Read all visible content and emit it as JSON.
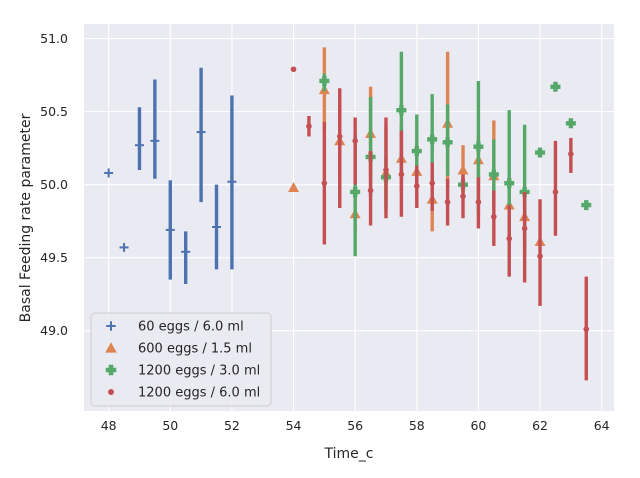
{
  "chart_data": {
    "type": "scatter",
    "xlabel": "Time_c",
    "ylabel": "Basal Feeding rate parameter",
    "xlim": [
      47.2,
      64.4
    ],
    "ylim": [
      48.45,
      51.1
    ],
    "x_ticks": [
      48,
      50,
      52,
      54,
      56,
      58,
      60,
      62,
      64
    ],
    "y_ticks": [
      49.0,
      49.5,
      50.0,
      50.5,
      51.0
    ],
    "x_tick_labels": [
      "48",
      "50",
      "52",
      "54",
      "56",
      "58",
      "60",
      "62",
      "64"
    ],
    "y_tick_labels": [
      "49.0",
      "49.5",
      "50.0",
      "50.5",
      "51.0"
    ],
    "grid": true,
    "legend_position": "lower-left",
    "series": [
      {
        "name": "60 eggs / 6.0 ml",
        "color": "#4c72b0",
        "marker": "plus",
        "points": [
          {
            "x": 48.0,
            "y": 50.08,
            "lo": null,
            "hi": null
          },
          {
            "x": 48.5,
            "y": 49.57,
            "lo": null,
            "hi": null
          },
          {
            "x": 49.0,
            "y": 50.27,
            "lo": 50.1,
            "hi": 50.53
          },
          {
            "x": 49.5,
            "y": 50.3,
            "lo": 50.04,
            "hi": 50.72
          },
          {
            "x": 50.0,
            "y": 49.69,
            "lo": 49.35,
            "hi": 50.03
          },
          {
            "x": 50.5,
            "y": 49.54,
            "lo": 49.32,
            "hi": 49.68
          },
          {
            "x": 51.0,
            "y": 50.36,
            "lo": 49.88,
            "hi": 50.8
          },
          {
            "x": 51.5,
            "y": 49.71,
            "lo": 49.42,
            "hi": 50.0
          },
          {
            "x": 52.0,
            "y": 50.02,
            "lo": 49.42,
            "hi": 50.61
          }
        ]
      },
      {
        "name": "600 eggs / 1.5 ml",
        "color": "#dd8452",
        "marker": "triangle",
        "points": [
          {
            "x": 54.0,
            "y": 49.98,
            "lo": null,
            "hi": null
          },
          {
            "x": 55.0,
            "y": 50.65,
            "lo": 50.37,
            "hi": 50.94
          },
          {
            "x": 55.5,
            "y": 50.3,
            "lo": 50.02,
            "hi": 50.55
          },
          {
            "x": 56.0,
            "y": 49.8,
            "lo": 49.67,
            "hi": 49.97
          },
          {
            "x": 56.5,
            "y": 50.35,
            "lo": 50.05,
            "hi": 50.67
          },
          {
            "x": 57.0,
            "y": 50.08,
            "lo": 49.81,
            "hi": 50.4
          },
          {
            "x": 57.5,
            "y": 50.18,
            "lo": 49.95,
            "hi": 50.42
          },
          {
            "x": 58.0,
            "y": 50.09,
            "lo": 49.9,
            "hi": 50.28
          },
          {
            "x": 58.5,
            "y": 49.9,
            "lo": 49.68,
            "hi": 50.1
          },
          {
            "x": 59.0,
            "y": 50.42,
            "lo": 49.98,
            "hi": 50.91
          },
          {
            "x": 59.5,
            "y": 50.1,
            "lo": 49.94,
            "hi": 50.27
          },
          {
            "x": 60.0,
            "y": 50.17,
            "lo": 49.99,
            "hi": 50.33
          },
          {
            "x": 60.5,
            "y": 50.06,
            "lo": 49.87,
            "hi": 50.44
          },
          {
            "x": 61.0,
            "y": 49.86,
            "lo": 49.72,
            "hi": 50.02
          },
          {
            "x": 61.5,
            "y": 49.78,
            "lo": 49.61,
            "hi": 49.96
          },
          {
            "x": 62.0,
            "y": 49.61,
            "lo": null,
            "hi": null
          }
        ]
      },
      {
        "name": "1200 eggs / 3.0 ml",
        "color": "#55a868",
        "marker": "plus-filled",
        "points": [
          {
            "x": 55.0,
            "y": 50.71,
            "lo": 50.64,
            "hi": 50.76
          },
          {
            "x": 56.0,
            "y": 49.95,
            "lo": 49.51,
            "hi": 50.35
          },
          {
            "x": 56.5,
            "y": 50.19,
            "lo": 49.92,
            "hi": 50.6
          },
          {
            "x": 57.0,
            "y": 50.05,
            "lo": 49.85,
            "hi": 50.2
          },
          {
            "x": 57.5,
            "y": 50.51,
            "lo": 50.08,
            "hi": 50.91
          },
          {
            "x": 58.0,
            "y": 50.23,
            "lo": 49.99,
            "hi": 50.48
          },
          {
            "x": 58.5,
            "y": 50.31,
            "lo": 50.0,
            "hi": 50.62
          },
          {
            "x": 59.0,
            "y": 50.29,
            "lo": 50.06,
            "hi": 50.55
          },
          {
            "x": 59.5,
            "y": 50.0,
            "lo": 49.95,
            "hi": 50.05
          },
          {
            "x": 60.0,
            "y": 50.26,
            "lo": 49.8,
            "hi": 50.71
          },
          {
            "x": 60.5,
            "y": 50.07,
            "lo": 49.84,
            "hi": 50.31
          },
          {
            "x": 61.0,
            "y": 50.01,
            "lo": 49.6,
            "hi": 50.51
          },
          {
            "x": 61.5,
            "y": 49.95,
            "lo": 49.51,
            "hi": 50.41
          },
          {
            "x": 62.0,
            "y": 50.22,
            "lo": null,
            "hi": null
          },
          {
            "x": 62.5,
            "y": 50.67,
            "lo": null,
            "hi": null
          },
          {
            "x": 63.0,
            "y": 50.42,
            "lo": null,
            "hi": null
          },
          {
            "x": 63.5,
            "y": 49.86,
            "lo": null,
            "hi": null
          }
        ]
      },
      {
        "name": "1200 eggs / 6.0 ml",
        "color": "#c44e52",
        "marker": "circle",
        "points": [
          {
            "x": 54.0,
            "y": 50.79,
            "lo": null,
            "hi": null
          },
          {
            "x": 54.5,
            "y": 50.4,
            "lo": 50.33,
            "hi": 50.47
          },
          {
            "x": 55.0,
            "y": 50.01,
            "lo": 49.59,
            "hi": 50.43
          },
          {
            "x": 55.5,
            "y": 50.33,
            "lo": 49.84,
            "hi": 50.66
          },
          {
            "x": 56.0,
            "y": 50.3,
            "lo": 50.0,
            "hi": 50.46
          },
          {
            "x": 56.5,
            "y": 49.96,
            "lo": 49.72,
            "hi": 50.23
          },
          {
            "x": 57.0,
            "y": 50.1,
            "lo": 49.77,
            "hi": 50.46
          },
          {
            "x": 57.5,
            "y": 50.07,
            "lo": 49.78,
            "hi": 50.37
          },
          {
            "x": 58.0,
            "y": 49.99,
            "lo": 49.84,
            "hi": 50.13
          },
          {
            "x": 58.5,
            "y": 50.01,
            "lo": 49.82,
            "hi": 50.15
          },
          {
            "x": 59.0,
            "y": 49.88,
            "lo": 49.72,
            "hi": 50.04
          },
          {
            "x": 59.5,
            "y": 49.92,
            "lo": 49.77,
            "hi": 50.07
          },
          {
            "x": 60.0,
            "y": 49.88,
            "lo": 49.7,
            "hi": 50.05
          },
          {
            "x": 60.5,
            "y": 49.78,
            "lo": 49.58,
            "hi": 49.96
          },
          {
            "x": 61.0,
            "y": 49.63,
            "lo": 49.37,
            "hi": 49.86
          },
          {
            "x": 61.5,
            "y": 49.7,
            "lo": 49.33,
            "hi": 49.95
          },
          {
            "x": 62.0,
            "y": 49.51,
            "lo": 49.17,
            "hi": 49.9
          },
          {
            "x": 62.5,
            "y": 49.95,
            "lo": 49.65,
            "hi": 50.3
          },
          {
            "x": 63.0,
            "y": 50.21,
            "lo": 50.08,
            "hi": 50.32
          },
          {
            "x": 63.5,
            "y": 49.01,
            "lo": 48.66,
            "hi": 49.37
          }
        ]
      }
    ]
  }
}
